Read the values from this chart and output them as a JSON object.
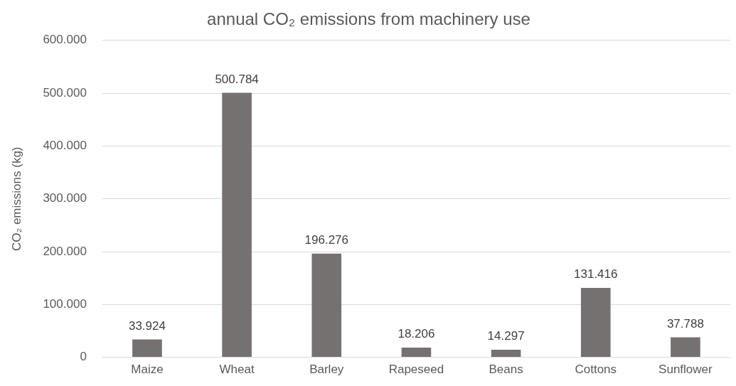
{
  "chart_data": {
    "type": "bar",
    "title": "annual CO₂ emissions from machinery use",
    "ylabel": "CO₂ emissions (kg)",
    "categories": [
      "Maize",
      "Wheat",
      "Barley",
      "Rapeseed",
      "Beans",
      "Cottons",
      "Sunflower"
    ],
    "values": [
      33924,
      500784,
      196276,
      18206,
      14297,
      131416,
      37788
    ],
    "value_labels": [
      "33.924",
      "500.784",
      "196.276",
      "18.206",
      "14.297",
      "131.416",
      "37.788"
    ],
    "color": "#767171",
    "ylim": [
      0,
      600000
    ],
    "yticks": [
      0,
      {
        "value": 100000,
        "label": "100.000"
      },
      {
        "value": 200000,
        "label": "200.000"
      },
      {
        "value": 300000,
        "label": "300.000"
      },
      {
        "value": 400000,
        "label": "400.000"
      },
      {
        "value": 500000,
        "label": "500.000"
      },
      {
        "value": 600000,
        "label": "600.000"
      }
    ],
    "grid": "y",
    "legend": false
  }
}
